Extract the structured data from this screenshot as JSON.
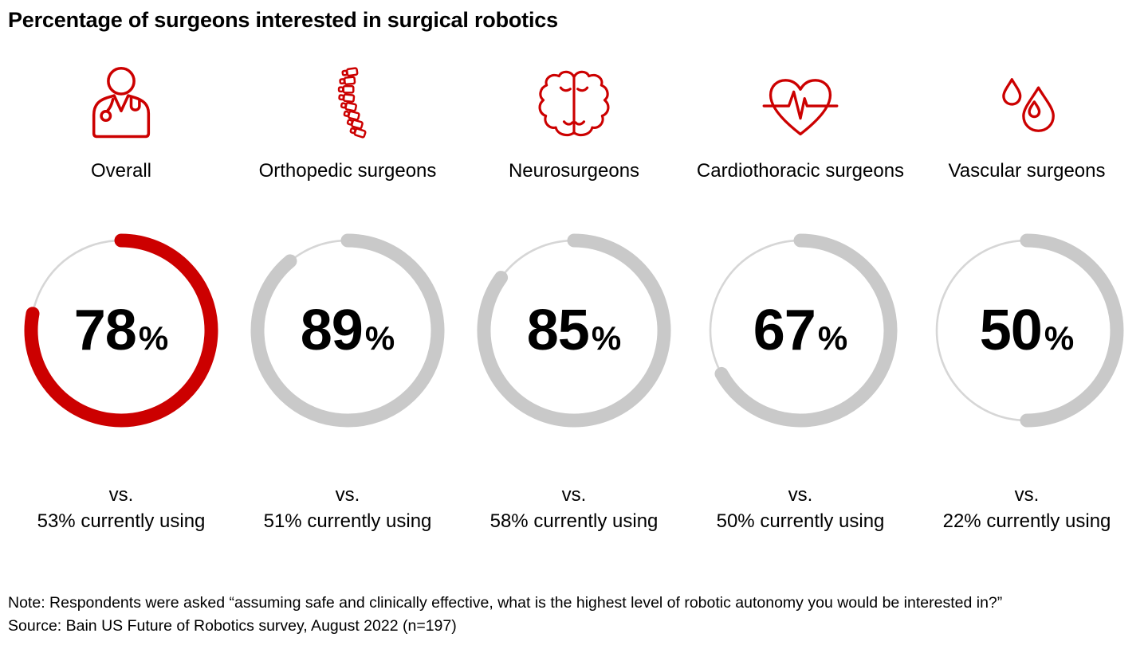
{
  "title": "Percentage of surgeons interested in surgical robotics",
  "note": "Note: Respondents were asked “assuming safe and clinically effective, what is the highest level of robotic autonomy you would be interested in?”",
  "source": "Source: Bain US Future of Robotics survey, August 2022 (n=197)",
  "colors": {
    "accent_red": "#CC0000",
    "ring_gray": "#c9c9c9",
    "track_gray": "#d6d6d6",
    "text_black": "#000000"
  },
  "chart_data": {
    "type": "donut",
    "title": "Percentage of surgeons interested in surgical robotics",
    "unit": "%",
    "categories": [
      "Overall",
      "Orthopedic surgeons",
      "Neurosurgeons",
      "Cardiothoracic surgeons",
      "Vascular surgeons"
    ],
    "series": [
      {
        "name": "Interested in surgical robotics",
        "values": [
          78,
          89,
          85,
          67,
          50
        ]
      },
      {
        "name": "Currently using",
        "values": [
          53,
          51,
          58,
          50,
          22
        ]
      }
    ],
    "layout": {
      "start_angle": "top",
      "direction": "clockwise",
      "highlight_index": 0
    },
    "groups": [
      {
        "label": "Overall",
        "icon": "doctor-icon",
        "value": 78,
        "ring_color": "#CC0000",
        "vs_line1": "vs.",
        "vs_line2": "53% currently using"
      },
      {
        "label": "Orthopedic surgeons",
        "icon": "spine-icon",
        "value": 89,
        "ring_color": "#c9c9c9",
        "vs_line1": "vs.",
        "vs_line2": "51% currently using"
      },
      {
        "label": "Neurosurgeons",
        "icon": "brain-icon",
        "value": 85,
        "ring_color": "#c9c9c9",
        "vs_line1": "vs.",
        "vs_line2": "58% currently using"
      },
      {
        "label": "Cardiothoracic surgeons",
        "icon": "heart-ekg-icon",
        "value": 67,
        "ring_color": "#c9c9c9",
        "vs_line1": "vs.",
        "vs_line2": "50% currently using"
      },
      {
        "label": "Vascular surgeons",
        "icon": "blood-drops-icon",
        "value": 50,
        "ring_color": "#c9c9c9",
        "vs_line1": "vs.",
        "vs_line2": "22% currently using"
      }
    ]
  }
}
